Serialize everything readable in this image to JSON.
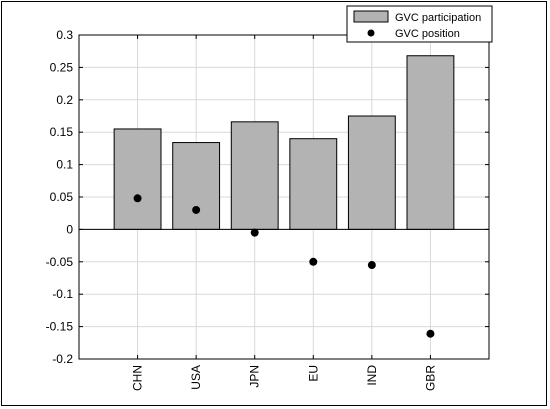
{
  "chart_data": {
    "type": "bar",
    "categories": [
      "CHN",
      "USA",
      "JPN",
      "EU",
      "IND",
      "GBR"
    ],
    "series": [
      {
        "name": "GVC participation",
        "type": "bar",
        "values": [
          0.155,
          0.134,
          0.166,
          0.14,
          0.175,
          0.268
        ]
      },
      {
        "name": "GVC position",
        "type": "scatter",
        "values": [
          0.048,
          0.03,
          -0.005,
          -0.05,
          -0.055,
          -0.161
        ]
      }
    ],
    "title": "",
    "xlabel": "",
    "ylabel": "",
    "ylim": [
      -0.2,
      0.3
    ],
    "yticks": [
      -0.2,
      -0.15,
      -0.1,
      -0.05,
      0,
      0.05,
      0.1,
      0.15,
      0.2,
      0.25,
      0.3
    ],
    "ytick_labels": [
      "-0.2",
      "-0.15",
      "-0.1",
      "-0.05",
      "0",
      "0.05",
      "0.1",
      "0.15",
      "0.2",
      "0.25",
      "0.3"
    ],
    "xtick_rotation": 90,
    "grid": true,
    "legend": "top-right",
    "colors": {
      "bar_fill": "#b3b3b3",
      "bar_edge": "#000000",
      "marker": "#000000",
      "grid": "#d9d9d9"
    }
  }
}
